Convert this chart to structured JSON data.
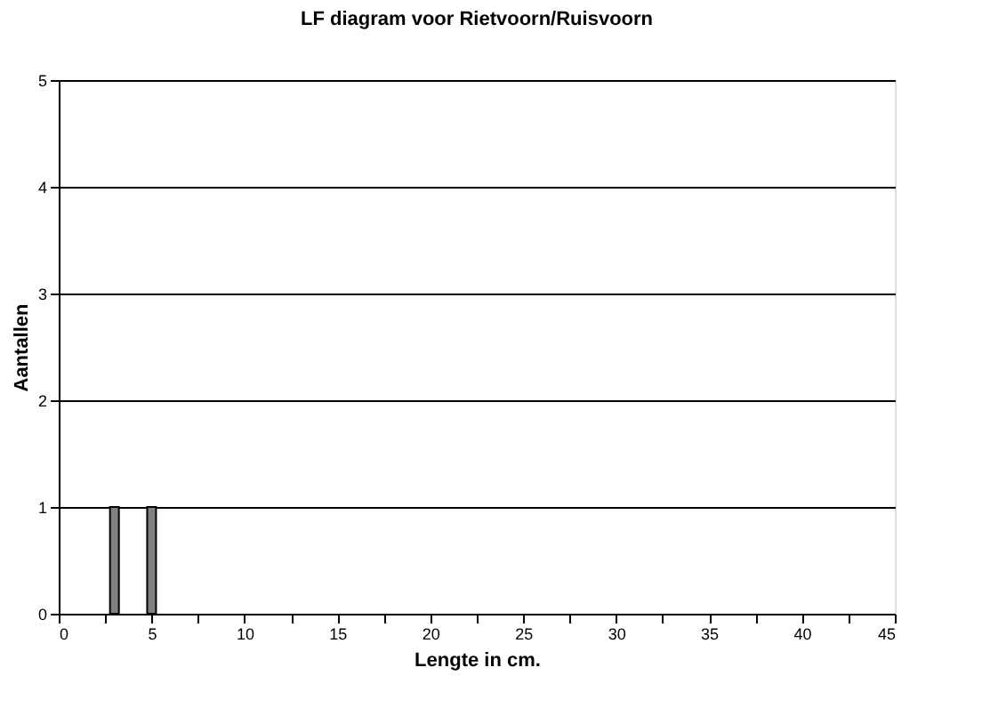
{
  "chart_data": {
    "type": "bar",
    "title": "LF diagram voor Rietvoorn/Ruisvoorn",
    "xlabel": "Lengte in cm.",
    "ylabel": "Aantallen",
    "x": [
      3,
      5
    ],
    "values": [
      1,
      1
    ],
    "color": "#808080",
    "xlim": [
      0,
      45
    ],
    "xticks": [
      0,
      {
        "value": 2.5,
        "label": null
      },
      5,
      {
        "value": 7.5,
        "label": null
      },
      10,
      {
        "value": 12.5,
        "label": null
      },
      15,
      {
        "value": 17.5,
        "label": null
      },
      20,
      {
        "value": 22.5,
        "label": null
      },
      25,
      {
        "value": 27.5,
        "label": null
      },
      30,
      {
        "value": 32.5,
        "label": null
      },
      35,
      {
        "value": 37.5,
        "label": null
      },
      40,
      {
        "value": 42.5,
        "label": null
      },
      45
    ],
    "ylim": [
      0,
      5
    ],
    "yticks": [
      0,
      1,
      2,
      3,
      4,
      5
    ],
    "grid": "y"
  }
}
